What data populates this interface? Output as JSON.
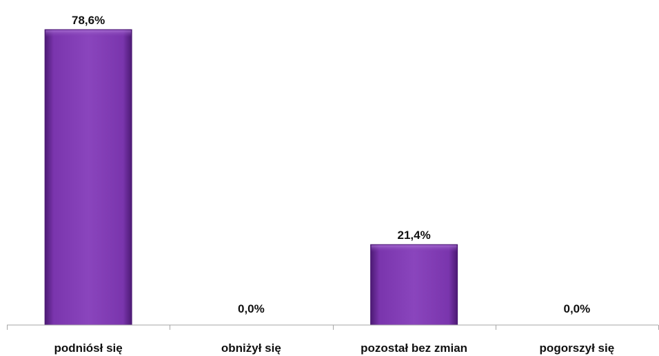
{
  "chart_data": {
    "type": "bar",
    "categories": [
      "podniósł się",
      "obniżył się",
      "pozostał bez zmian",
      "pogorszył się"
    ],
    "values": [
      78.6,
      0.0,
      21.4,
      0.0
    ],
    "value_labels": [
      "78,6%",
      "0,0%",
      "21,4%",
      "0,0%"
    ],
    "ylim": [
      0,
      80
    ],
    "grid": false,
    "legend": "none",
    "colors": {
      "bar_main": "#7a35ad",
      "bar_dark": "#4c1a74",
      "bar_light": "#a36ad1",
      "axis": "#a6a6a6"
    }
  }
}
